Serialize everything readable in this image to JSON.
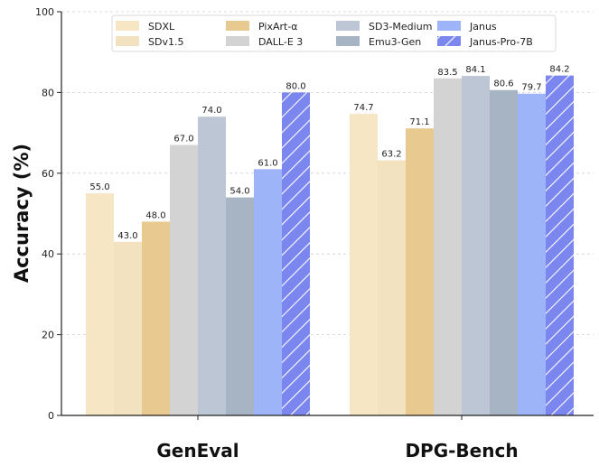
{
  "chart_data": {
    "type": "bar",
    "categories": [
      "GenEval",
      "DPG-Bench"
    ],
    "ylabel": "Accuracy (%)",
    "xlabel": "",
    "ylim": [
      0,
      100
    ],
    "yticks": [
      0,
      20,
      40,
      60,
      80,
      100
    ],
    "grid": "horizontal dashed",
    "legend_position": "top-center",
    "series": [
      {
        "name": "SDXL",
        "values": [
          55.0,
          74.7
        ],
        "labels": [
          "55.0",
          "74.7"
        ],
        "color": "#f6e6c4",
        "hatch": false
      },
      {
        "name": "SDv1.5",
        "values": [
          43.0,
          63.2
        ],
        "labels": [
          "43.0",
          "63.2"
        ],
        "color": "#f3e2c0",
        "hatch": false
      },
      {
        "name": "PixArt-α",
        "values": [
          48.0,
          71.1
        ],
        "labels": [
          "48.0",
          "71.1"
        ],
        "color": "#e8c98f",
        "hatch": false
      },
      {
        "name": "DALL-E 3",
        "values": [
          67.0,
          83.5
        ],
        "labels": [
          "67.0",
          "83.5"
        ],
        "color": "#d3d3d3",
        "hatch": false
      },
      {
        "name": "SD3-Medium",
        "values": [
          74.0,
          84.1
        ],
        "labels": [
          "74.0",
          "84.1"
        ],
        "color": "#bcc6d4",
        "hatch": false
      },
      {
        "name": "Emu3-Gen",
        "values": [
          54.0,
          80.6
        ],
        "labels": [
          "54.0",
          "80.6"
        ],
        "color": "#a7b4c3",
        "hatch": false
      },
      {
        "name": "Janus",
        "values": [
          61.0,
          79.7
        ],
        "labels": [
          "61.0",
          "79.7"
        ],
        "color": "#9db4f8",
        "hatch": false
      },
      {
        "name": "Janus-Pro-7B",
        "values": [
          80.0,
          84.2
        ],
        "labels": [
          "80.0",
          "84.2"
        ],
        "color": "#7b86ee",
        "hatch": true
      }
    ]
  }
}
